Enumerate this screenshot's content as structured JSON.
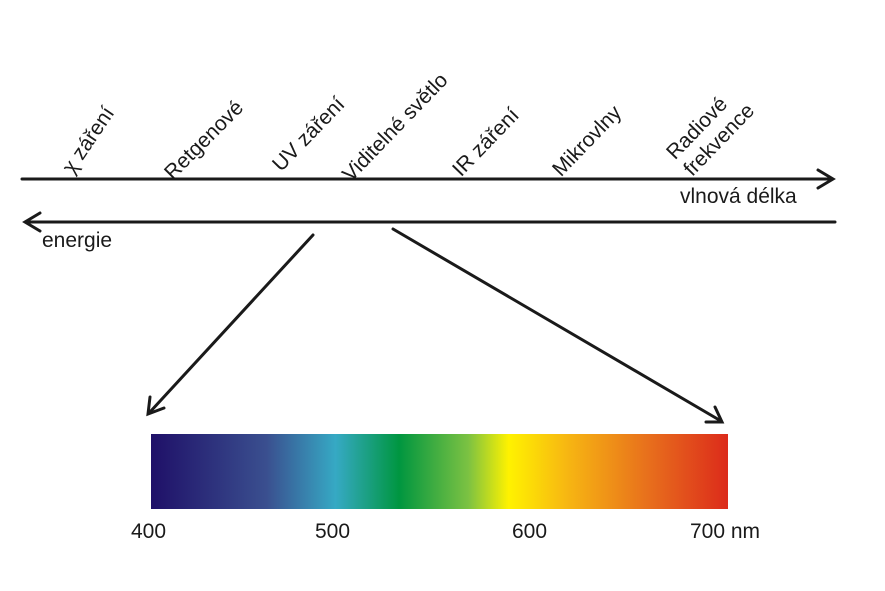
{
  "bands": [
    {
      "label": "χ záření"
    },
    {
      "label": "Retgenové"
    },
    {
      "label": "UV záření"
    },
    {
      "label": "Viditelné světlo"
    },
    {
      "label": "IR záření"
    },
    {
      "label": "Mikrovlny"
    },
    {
      "label_line1": "Radiové",
      "label_line2": "frekvence"
    }
  ],
  "axes": {
    "wavelength_label": "vlnová délka",
    "energy_label": "energie"
  },
  "spectrum": {
    "ticks": [
      "400",
      "500",
      "600",
      "700 nm"
    ],
    "colors": [
      "#1f1068",
      "#3a4f8f",
      "#36a9c4",
      "#009640",
      "#7cc242",
      "#fff200",
      "#f7b712",
      "#e8701c",
      "#dc2b1b"
    ]
  }
}
